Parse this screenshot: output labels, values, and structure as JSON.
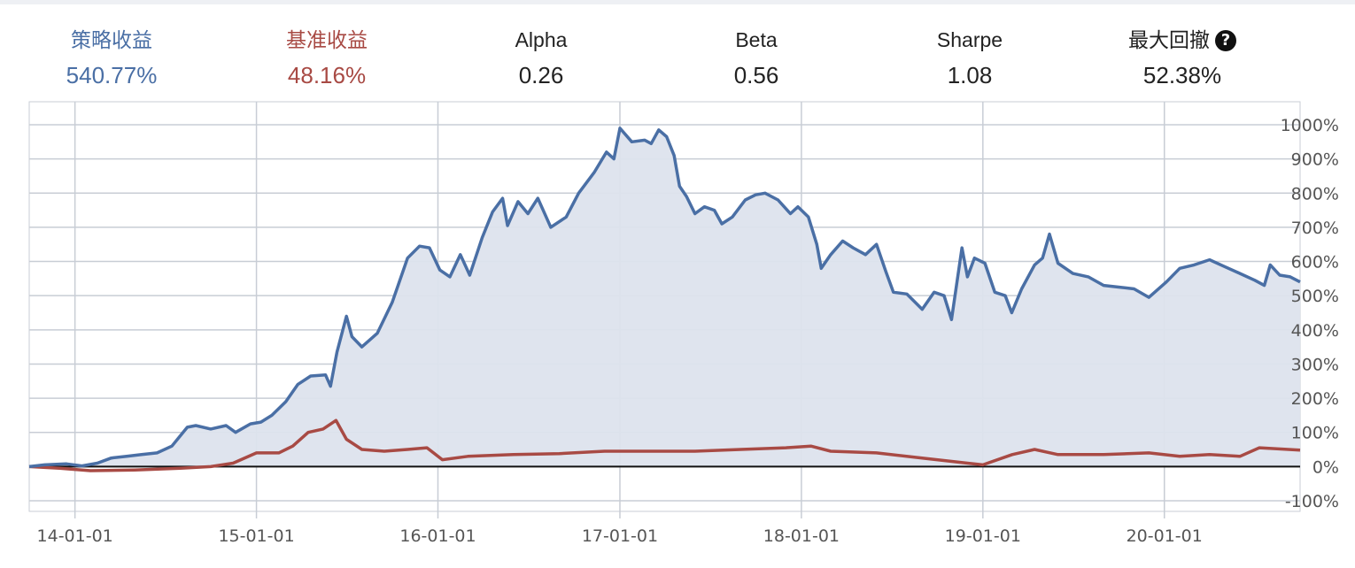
{
  "stats": [
    {
      "label": "策略收益",
      "value": "540.77%",
      "color": "#4a6fa5"
    },
    {
      "label": "基准收益",
      "value": "48.16%",
      "color": "#a84a44"
    },
    {
      "label": "Alpha",
      "value": "0.26",
      "color": "#222222"
    },
    {
      "label": "Beta",
      "value": "0.56",
      "color": "#222222"
    },
    {
      "label": "Sharpe",
      "value": "1.08",
      "color": "#222222"
    },
    {
      "label": "最大回撤",
      "value": "52.38%",
      "color": "#222222",
      "icon": "question-circle-icon"
    }
  ],
  "chart_data": {
    "type": "area",
    "x_tick_labels": [
      "14-01-01",
      "15-01-01",
      "16-01-01",
      "17-01-01",
      "18-01-01",
      "19-01-01",
      "20-01-01"
    ],
    "y_tick_labels": [
      "1000%",
      "900%",
      "800%",
      "700%",
      "600%",
      "500%",
      "400%",
      "300%",
      "200%",
      "100%",
      "0%",
      "-100%"
    ],
    "y_ticks": [
      1000,
      900,
      800,
      700,
      600,
      500,
      400,
      300,
      200,
      100,
      0,
      -100
    ],
    "ylim": [
      -100,
      1000
    ],
    "xlim": [
      "2013-10-01",
      "2020-09-30"
    ],
    "grid": true,
    "series": [
      {
        "name": "策略收益",
        "color": "#4a6fa5",
        "fill": "#dde3ed",
        "points": [
          [
            "2013-10-01",
            0
          ],
          [
            "2013-11-01",
            5
          ],
          [
            "2013-12-15",
            8
          ],
          [
            "2014-01-15",
            2
          ],
          [
            "2014-02-15",
            10
          ],
          [
            "2014-03-15",
            25
          ],
          [
            "2014-04-15",
            30
          ],
          [
            "2014-05-15",
            35
          ],
          [
            "2014-06-15",
            40
          ],
          [
            "2014-07-15",
            60
          ],
          [
            "2014-08-15",
            115
          ],
          [
            "2014-09-01",
            120
          ],
          [
            "2014-10-01",
            110
          ],
          [
            "2014-11-01",
            120
          ],
          [
            "2014-11-20",
            100
          ],
          [
            "2014-12-20",
            125
          ],
          [
            "2015-01-10",
            130
          ],
          [
            "2015-02-01",
            150
          ],
          [
            "2015-03-01",
            190
          ],
          [
            "2015-03-25",
            240
          ],
          [
            "2015-04-20",
            265
          ],
          [
            "2015-05-20",
            268
          ],
          [
            "2015-05-30",
            235
          ],
          [
            "2015-06-12",
            335
          ],
          [
            "2015-07-01",
            440
          ],
          [
            "2015-07-12",
            380
          ],
          [
            "2015-08-01",
            350
          ],
          [
            "2015-09-01",
            390
          ],
          [
            "2015-10-01",
            480
          ],
          [
            "2015-11-01",
            610
          ],
          [
            "2015-11-25",
            645
          ],
          [
            "2015-12-15",
            640
          ],
          [
            "2016-01-05",
            575
          ],
          [
            "2016-01-25",
            555
          ],
          [
            "2016-02-15",
            620
          ],
          [
            "2016-03-05",
            560
          ],
          [
            "2016-03-30",
            670
          ],
          [
            "2016-04-20",
            745
          ],
          [
            "2016-05-10",
            785
          ],
          [
            "2016-05-20",
            705
          ],
          [
            "2016-06-10",
            775
          ],
          [
            "2016-06-30",
            740
          ],
          [
            "2016-07-20",
            785
          ],
          [
            "2016-08-15",
            700
          ],
          [
            "2016-09-15",
            730
          ],
          [
            "2016-10-10",
            800
          ],
          [
            "2016-11-10",
            860
          ],
          [
            "2016-12-05",
            920
          ],
          [
            "2016-12-20",
            900
          ],
          [
            "2017-01-01",
            990
          ],
          [
            "2017-01-25",
            950
          ],
          [
            "2017-02-20",
            955
          ],
          [
            "2017-03-05",
            945
          ],
          [
            "2017-03-20",
            985
          ],
          [
            "2017-04-05",
            965
          ],
          [
            "2017-04-20",
            910
          ],
          [
            "2017-05-01",
            820
          ],
          [
            "2017-05-15",
            790
          ],
          [
            "2017-06-01",
            740
          ],
          [
            "2017-06-20",
            760
          ],
          [
            "2017-07-10",
            750
          ],
          [
            "2017-07-25",
            710
          ],
          [
            "2017-08-15",
            730
          ],
          [
            "2017-09-10",
            780
          ],
          [
            "2017-10-01",
            795
          ],
          [
            "2017-10-20",
            800
          ],
          [
            "2017-11-15",
            780
          ],
          [
            "2017-12-10",
            740
          ],
          [
            "2017-12-25",
            760
          ],
          [
            "2018-01-15",
            730
          ],
          [
            "2018-02-01",
            650
          ],
          [
            "2018-02-10",
            580
          ],
          [
            "2018-03-01",
            620
          ],
          [
            "2018-03-25",
            660
          ],
          [
            "2018-04-15",
            640
          ],
          [
            "2018-05-10",
            620
          ],
          [
            "2018-06-01",
            650
          ],
          [
            "2018-06-20",
            570
          ],
          [
            "2018-07-05",
            510
          ],
          [
            "2018-08-01",
            505
          ],
          [
            "2018-09-01",
            460
          ],
          [
            "2018-09-25",
            510
          ],
          [
            "2018-10-15",
            500
          ],
          [
            "2018-10-30",
            430
          ],
          [
            "2018-11-20",
            640
          ],
          [
            "2018-12-01",
            555
          ],
          [
            "2018-12-15",
            610
          ],
          [
            "2019-01-05",
            595
          ],
          [
            "2019-01-25",
            510
          ],
          [
            "2019-02-15",
            500
          ],
          [
            "2019-02-28",
            450
          ],
          [
            "2019-03-20",
            520
          ],
          [
            "2019-04-15",
            590
          ],
          [
            "2019-05-01",
            610
          ],
          [
            "2019-05-15",
            680
          ],
          [
            "2019-06-01",
            595
          ],
          [
            "2019-07-01",
            565
          ],
          [
            "2019-08-01",
            555
          ],
          [
            "2019-09-01",
            530
          ],
          [
            "2019-10-01",
            525
          ],
          [
            "2019-11-01",
            520
          ],
          [
            "2019-12-01",
            495
          ],
          [
            "2020-01-05",
            540
          ],
          [
            "2020-02-01",
            580
          ],
          [
            "2020-03-01",
            590
          ],
          [
            "2020-04-01",
            605
          ],
          [
            "2020-05-01",
            585
          ],
          [
            "2020-06-01",
            565
          ],
          [
            "2020-07-01",
            545
          ],
          [
            "2020-07-20",
            530
          ],
          [
            "2020-08-01",
            590
          ],
          [
            "2020-08-20",
            560
          ],
          [
            "2020-09-10",
            555
          ],
          [
            "2020-09-30",
            540
          ]
        ]
      },
      {
        "name": "基准收益",
        "color": "#a84a44",
        "points": [
          [
            "2013-10-01",
            0
          ],
          [
            "2013-12-01",
            -5
          ],
          [
            "2014-02-01",
            -12
          ],
          [
            "2014-05-01",
            -10
          ],
          [
            "2014-08-01",
            -5
          ],
          [
            "2014-10-01",
            0
          ],
          [
            "2014-11-15",
            10
          ],
          [
            "2015-01-01",
            40
          ],
          [
            "2015-02-15",
            40
          ],
          [
            "2015-03-15",
            60
          ],
          [
            "2015-04-15",
            100
          ],
          [
            "2015-05-15",
            110
          ],
          [
            "2015-06-10",
            135
          ],
          [
            "2015-07-01",
            80
          ],
          [
            "2015-08-01",
            50
          ],
          [
            "2015-09-15",
            45
          ],
          [
            "2015-11-01",
            50
          ],
          [
            "2015-12-10",
            55
          ],
          [
            "2016-01-10",
            20
          ],
          [
            "2016-03-01",
            30
          ],
          [
            "2016-06-01",
            35
          ],
          [
            "2016-09-01",
            38
          ],
          [
            "2016-12-01",
            45
          ],
          [
            "2017-03-01",
            45
          ],
          [
            "2017-06-01",
            45
          ],
          [
            "2017-09-01",
            50
          ],
          [
            "2017-12-01",
            55
          ],
          [
            "2018-01-20",
            60
          ],
          [
            "2018-03-01",
            45
          ],
          [
            "2018-06-01",
            40
          ],
          [
            "2018-09-01",
            25
          ],
          [
            "2018-12-01",
            10
          ],
          [
            "2019-01-01",
            5
          ],
          [
            "2019-03-01",
            35
          ],
          [
            "2019-04-15",
            50
          ],
          [
            "2019-06-01",
            35
          ],
          [
            "2019-09-01",
            35
          ],
          [
            "2019-12-01",
            40
          ],
          [
            "2020-02-01",
            30
          ],
          [
            "2020-04-01",
            35
          ],
          [
            "2020-06-01",
            30
          ],
          [
            "2020-07-10",
            55
          ],
          [
            "2020-09-30",
            48
          ]
        ]
      }
    ]
  }
}
